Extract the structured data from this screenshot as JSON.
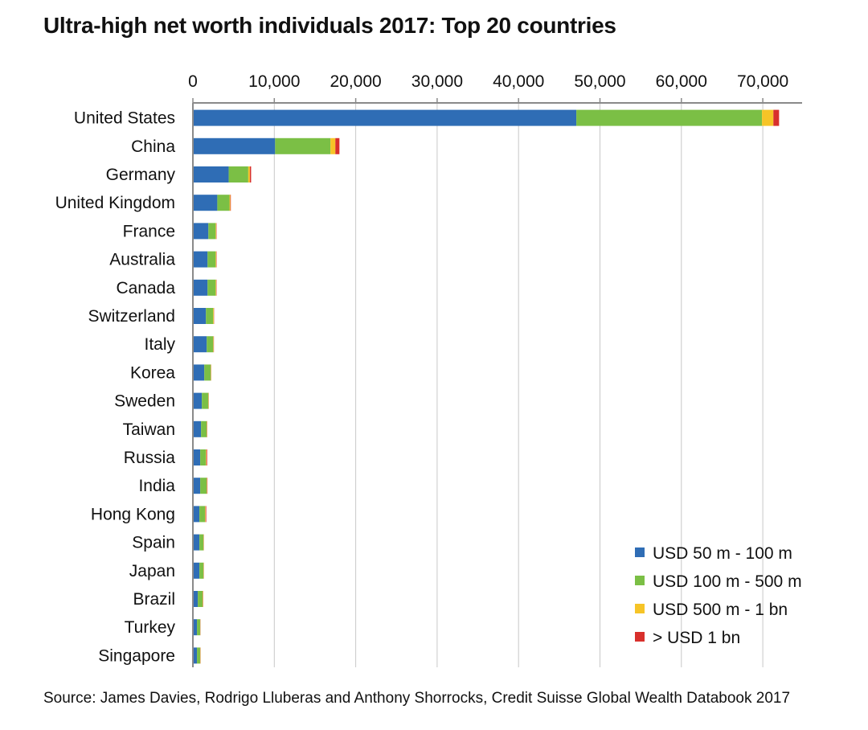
{
  "chart_data": {
    "type": "bar",
    "orientation": "horizontal",
    "stacked": true,
    "title": "Ultra-high net worth individuals 2017: Top 20 countries",
    "xlim": [
      0,
      75000
    ],
    "xticks": [
      0,
      10000,
      20000,
      30000,
      40000,
      50000,
      60000,
      70000
    ],
    "xtick_labels": [
      "0",
      "10,000",
      "20,000",
      "30,000",
      "40,000",
      "50,000",
      "60,000",
      "70,000"
    ],
    "categories": [
      "United States",
      "China",
      "Germany",
      "United Kingdom",
      "France",
      "Australia",
      "Canada",
      "Switzerland",
      "Italy",
      "Korea",
      "Sweden",
      "Taiwan",
      "Russia",
      "India",
      "Hong Kong",
      "Spain",
      "Japan",
      "Brazil",
      "Turkey",
      "Singapore"
    ],
    "series": [
      {
        "name": "USD 50 m - 100 m",
        "color": "#2f6db5",
        "values": [
          47100,
          10100,
          4400,
          3000,
          1900,
          1800,
          1800,
          1600,
          1700,
          1400,
          1100,
          1000,
          900,
          900,
          800,
          800,
          800,
          600,
          500,
          500
        ]
      },
      {
        "name": "USD 100 m - 500 m",
        "color": "#7bbf45",
        "values": [
          22800,
          6800,
          2400,
          1500,
          900,
          1000,
          1000,
          900,
          800,
          800,
          800,
          700,
          700,
          800,
          700,
          500,
          500,
          600,
          400,
          400
        ]
      },
      {
        "name": "USD 500 m - 1 bn",
        "color": "#f6c427",
        "values": [
          1400,
          600,
          200,
          100,
          60,
          70,
          60,
          70,
          50,
          40,
          40,
          40,
          60,
          40,
          60,
          30,
          30,
          40,
          20,
          30
        ]
      },
      {
        "name": "> USD 1 bn",
        "color": "#d8302c",
        "values": [
          700,
          500,
          150,
          60,
          40,
          40,
          40,
          30,
          30,
          20,
          20,
          30,
          90,
          50,
          80,
          20,
          20,
          30,
          20,
          20
        ]
      }
    ],
    "legend_position": "bottom-right",
    "grid": true
  },
  "source": "Source: James Davies, Rodrigo Lluberas and Anthony Shorrocks, Credit Suisse Global Wealth Databook 2017"
}
